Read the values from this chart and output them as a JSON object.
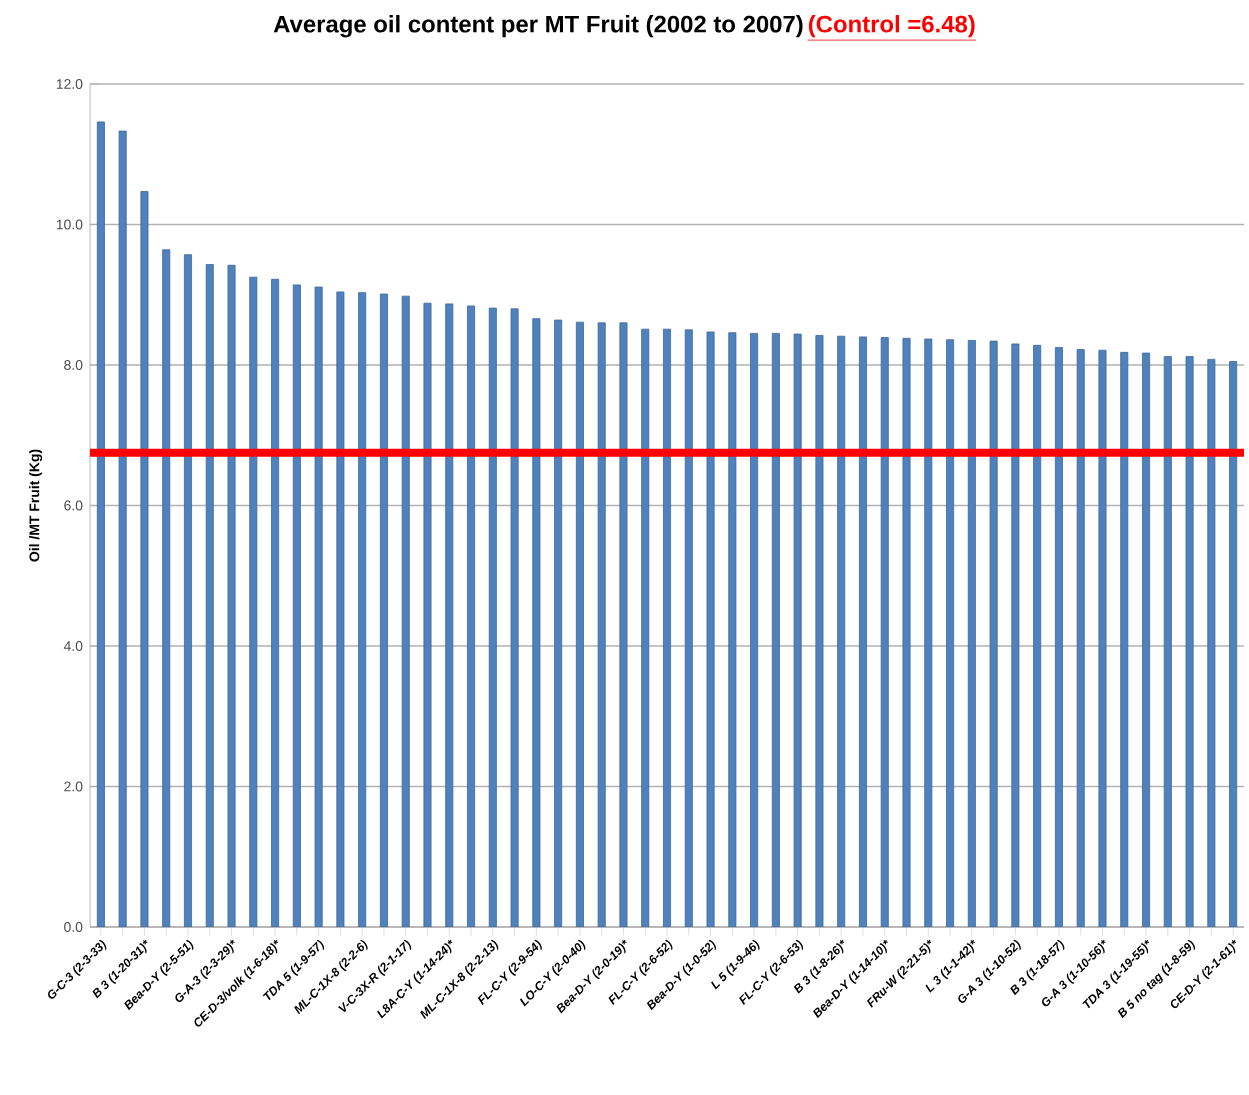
{
  "chart_data": {
    "type": "bar",
    "title": "Average oil content per MT Fruit (2002 to 2007)",
    "annotations": [
      "(Control =6.48)"
    ],
    "ylabel": "Oil  /MT Fruit  (Kg)",
    "categories": [
      "G-C-3 (2-3-33)",
      null,
      "B 3 (1-20-31)*",
      null,
      "Bea-D-Y (2-5-51)",
      null,
      "G-A-3 (2-3-29)*",
      null,
      "CE-D-3/volk (1-6-18)*",
      null,
      "TDA 5 (1-9-57)",
      null,
      "ML-C-1X-8 (2-2-6)",
      null,
      "V-C-3X-R (2-1-17)",
      null,
      "L8A-C-Y (1-14-24)*",
      null,
      "ML-C-1X-8 (2-2-13)",
      null,
      "FL-C-Y (2-9-54)",
      null,
      "LO-C-Y (2-0-40)",
      null,
      "Bea-D-Y (2-0-19)*",
      null,
      "FL-C-Y (2-6-52)",
      null,
      "Bea-D-Y (1-0-52)",
      null,
      "L 5 (1-9-46)",
      null,
      "FL-C-Y (2-6-53)",
      null,
      "B 3 (1-8-26)*",
      null,
      "Bea-D-Y (1-14-10)*",
      null,
      "FRu-W (2-21-5)*",
      null,
      "L 3 (1-1-42)*",
      null,
      "G-A 3 (1-10-52)",
      null,
      "B 3 (1-18-57)",
      null,
      "G-A 3 (1-10-56)*",
      null,
      "TDA 3 (1-19-55)*",
      null,
      "B 5 no tag (1-8-59)",
      null,
      "CE-D-Y (2-1-61)*"
    ],
    "values": [
      11.46,
      11.33,
      10.47,
      9.64,
      9.57,
      9.43,
      9.42,
      9.25,
      9.22,
      9.14,
      9.11,
      9.04,
      9.03,
      9.01,
      8.98,
      8.88,
      8.87,
      8.84,
      8.81,
      8.8,
      8.66,
      8.64,
      8.61,
      8.6,
      8.6,
      8.51,
      8.51,
      8.5,
      8.47,
      8.46,
      8.45,
      8.45,
      8.44,
      8.42,
      8.41,
      8.4,
      8.39,
      8.38,
      8.37,
      8.36,
      8.35,
      8.34,
      8.3,
      8.28,
      8.25,
      8.22,
      8.21,
      8.18,
      8.17,
      8.12,
      8.12,
      8.08,
      8.05
    ],
    "color": "#4f81bd",
    "ylim": [
      0,
      12
    ],
    "yticks": [
      {
        "value": 0,
        "label": "0.0"
      },
      {
        "value": 2,
        "label": "2.0"
      },
      {
        "value": 4,
        "label": "4.0"
      },
      {
        "value": 6,
        "label": "6.0"
      },
      {
        "value": 8,
        "label": "8.0"
      },
      {
        "value": 10,
        "label": "10.0"
      },
      {
        "value": 12,
        "label": "12.0"
      }
    ],
    "grid": "y",
    "ref_lines": [
      {
        "axis": "y",
        "value": 6.75,
        "color": "#ff0000"
      }
    ]
  }
}
